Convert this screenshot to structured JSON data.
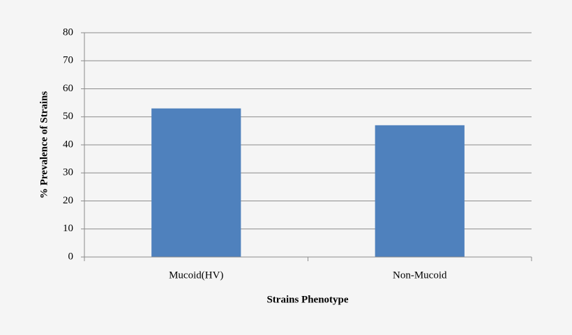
{
  "chart_data": {
    "type": "bar",
    "x_label": "Strains  Phenotype",
    "y_label": "% Prevalence of  Strains",
    "categories": [
      "Mucoid(HV)",
      "Non-Mucoid"
    ],
    "values": [
      53,
      47
    ],
    "color": "#4f81bd",
    "ylim": [
      0,
      80
    ],
    "yticks": [
      0,
      10,
      20,
      30,
      40,
      50,
      60,
      70,
      80
    ],
    "grid": true
  }
}
